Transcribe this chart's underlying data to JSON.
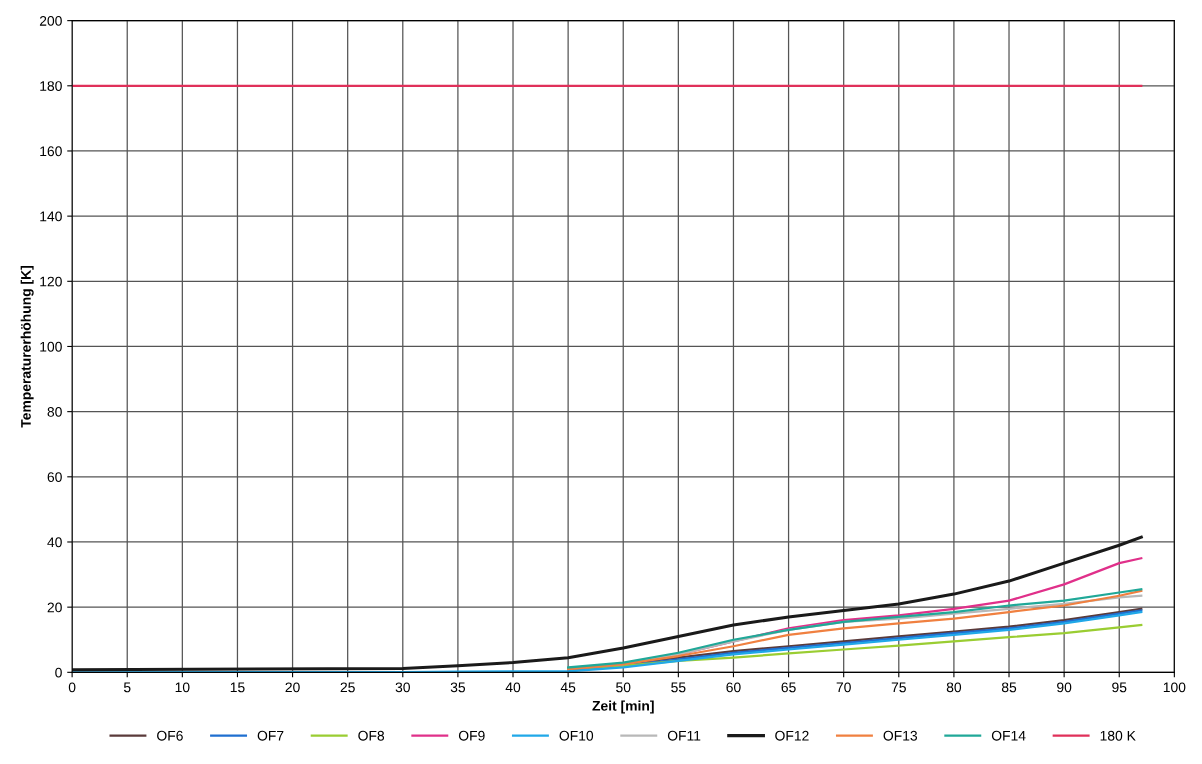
{
  "chart_data": {
    "type": "line",
    "xlabel": "Zeit [min]",
    "ylabel": "Temperaturerhöhung [K]",
    "x": [
      0,
      30,
      35,
      40,
      45,
      50,
      55,
      60,
      65,
      70,
      75,
      80,
      85,
      90,
      95,
      97
    ],
    "series": [
      {
        "name": "OF6",
        "color": "#5a3a3a",
        "values": [
          null,
          null,
          null,
          null,
          1,
          2.5,
          4.5,
          6.5,
          8,
          9.5,
          11,
          12.5,
          14,
          16,
          18.5,
          19.5
        ]
      },
      {
        "name": "OF7",
        "color": "#1f6fd0",
        "values": [
          null,
          null,
          null,
          null,
          0.5,
          2,
          4,
          6,
          7.5,
          9,
          10.5,
          12,
          13.5,
          15.5,
          18,
          19
        ]
      },
      {
        "name": "OF8",
        "color": "#9acd32",
        "values": [
          null,
          null,
          null,
          null,
          1,
          2,
          3.5,
          4.5,
          5.8,
          7,
          8.2,
          9.5,
          10.8,
          12,
          13.8,
          14.5
        ]
      },
      {
        "name": "OF9",
        "color": "#e0308a",
        "values": [
          null,
          null,
          null,
          null,
          1,
          2.5,
          5.5,
          9.5,
          13.5,
          16,
          17.5,
          19.5,
          22,
          27,
          33.5,
          35
        ]
      },
      {
        "name": "OF10",
        "color": "#20a8e8",
        "values": [
          0,
          0.1,
          0.2,
          0.3,
          0.3,
          1.5,
          3.5,
          5.5,
          7,
          8.5,
          10,
          11.5,
          13,
          15,
          17.5,
          18.5
        ]
      },
      {
        "name": "OF11",
        "color": "#b8b8b8",
        "values": [
          null,
          null,
          null,
          null,
          1.2,
          2.5,
          5.5,
          9.5,
          13,
          15.5,
          16.5,
          18,
          19.5,
          21,
          23,
          23.5
        ]
      },
      {
        "name": "OF12",
        "color": "#1a1a1a",
        "values": [
          0.8,
          1.2,
          2,
          3,
          4.5,
          7.5,
          11,
          14.5,
          17,
          19,
          21,
          24,
          28,
          33.5,
          39,
          41.5
        ]
      },
      {
        "name": "OF13",
        "color": "#f08040",
        "values": [
          null,
          null,
          null,
          null,
          1,
          2.5,
          5,
          8,
          11.5,
          13.5,
          15,
          16.5,
          18.5,
          20.5,
          23.5,
          25
        ]
      },
      {
        "name": "OF14",
        "color": "#20a898",
        "values": [
          null,
          null,
          null,
          null,
          1.5,
          3,
          6,
          10,
          13,
          15.5,
          17,
          18.5,
          20.5,
          22,
          24.5,
          25.5
        ]
      },
      {
        "name": "180 K",
        "color": "#e0305a",
        "values": [
          180,
          180,
          180,
          180,
          180,
          180,
          180,
          180,
          180,
          180,
          180,
          180,
          180,
          180,
          180,
          180
        ]
      }
    ],
    "xlim": [
      0,
      100
    ],
    "xticks": [
      0,
      5,
      10,
      15,
      20,
      25,
      30,
      35,
      40,
      45,
      50,
      55,
      60,
      65,
      70,
      75,
      80,
      85,
      90,
      95,
      100
    ],
    "ylim": [
      0,
      200
    ],
    "yticks": [
      0,
      20,
      40,
      60,
      80,
      100,
      120,
      140,
      160,
      180,
      200
    ],
    "grid": true,
    "legend": "bottom",
    "marker": "none",
    "line_style": "solid"
  }
}
